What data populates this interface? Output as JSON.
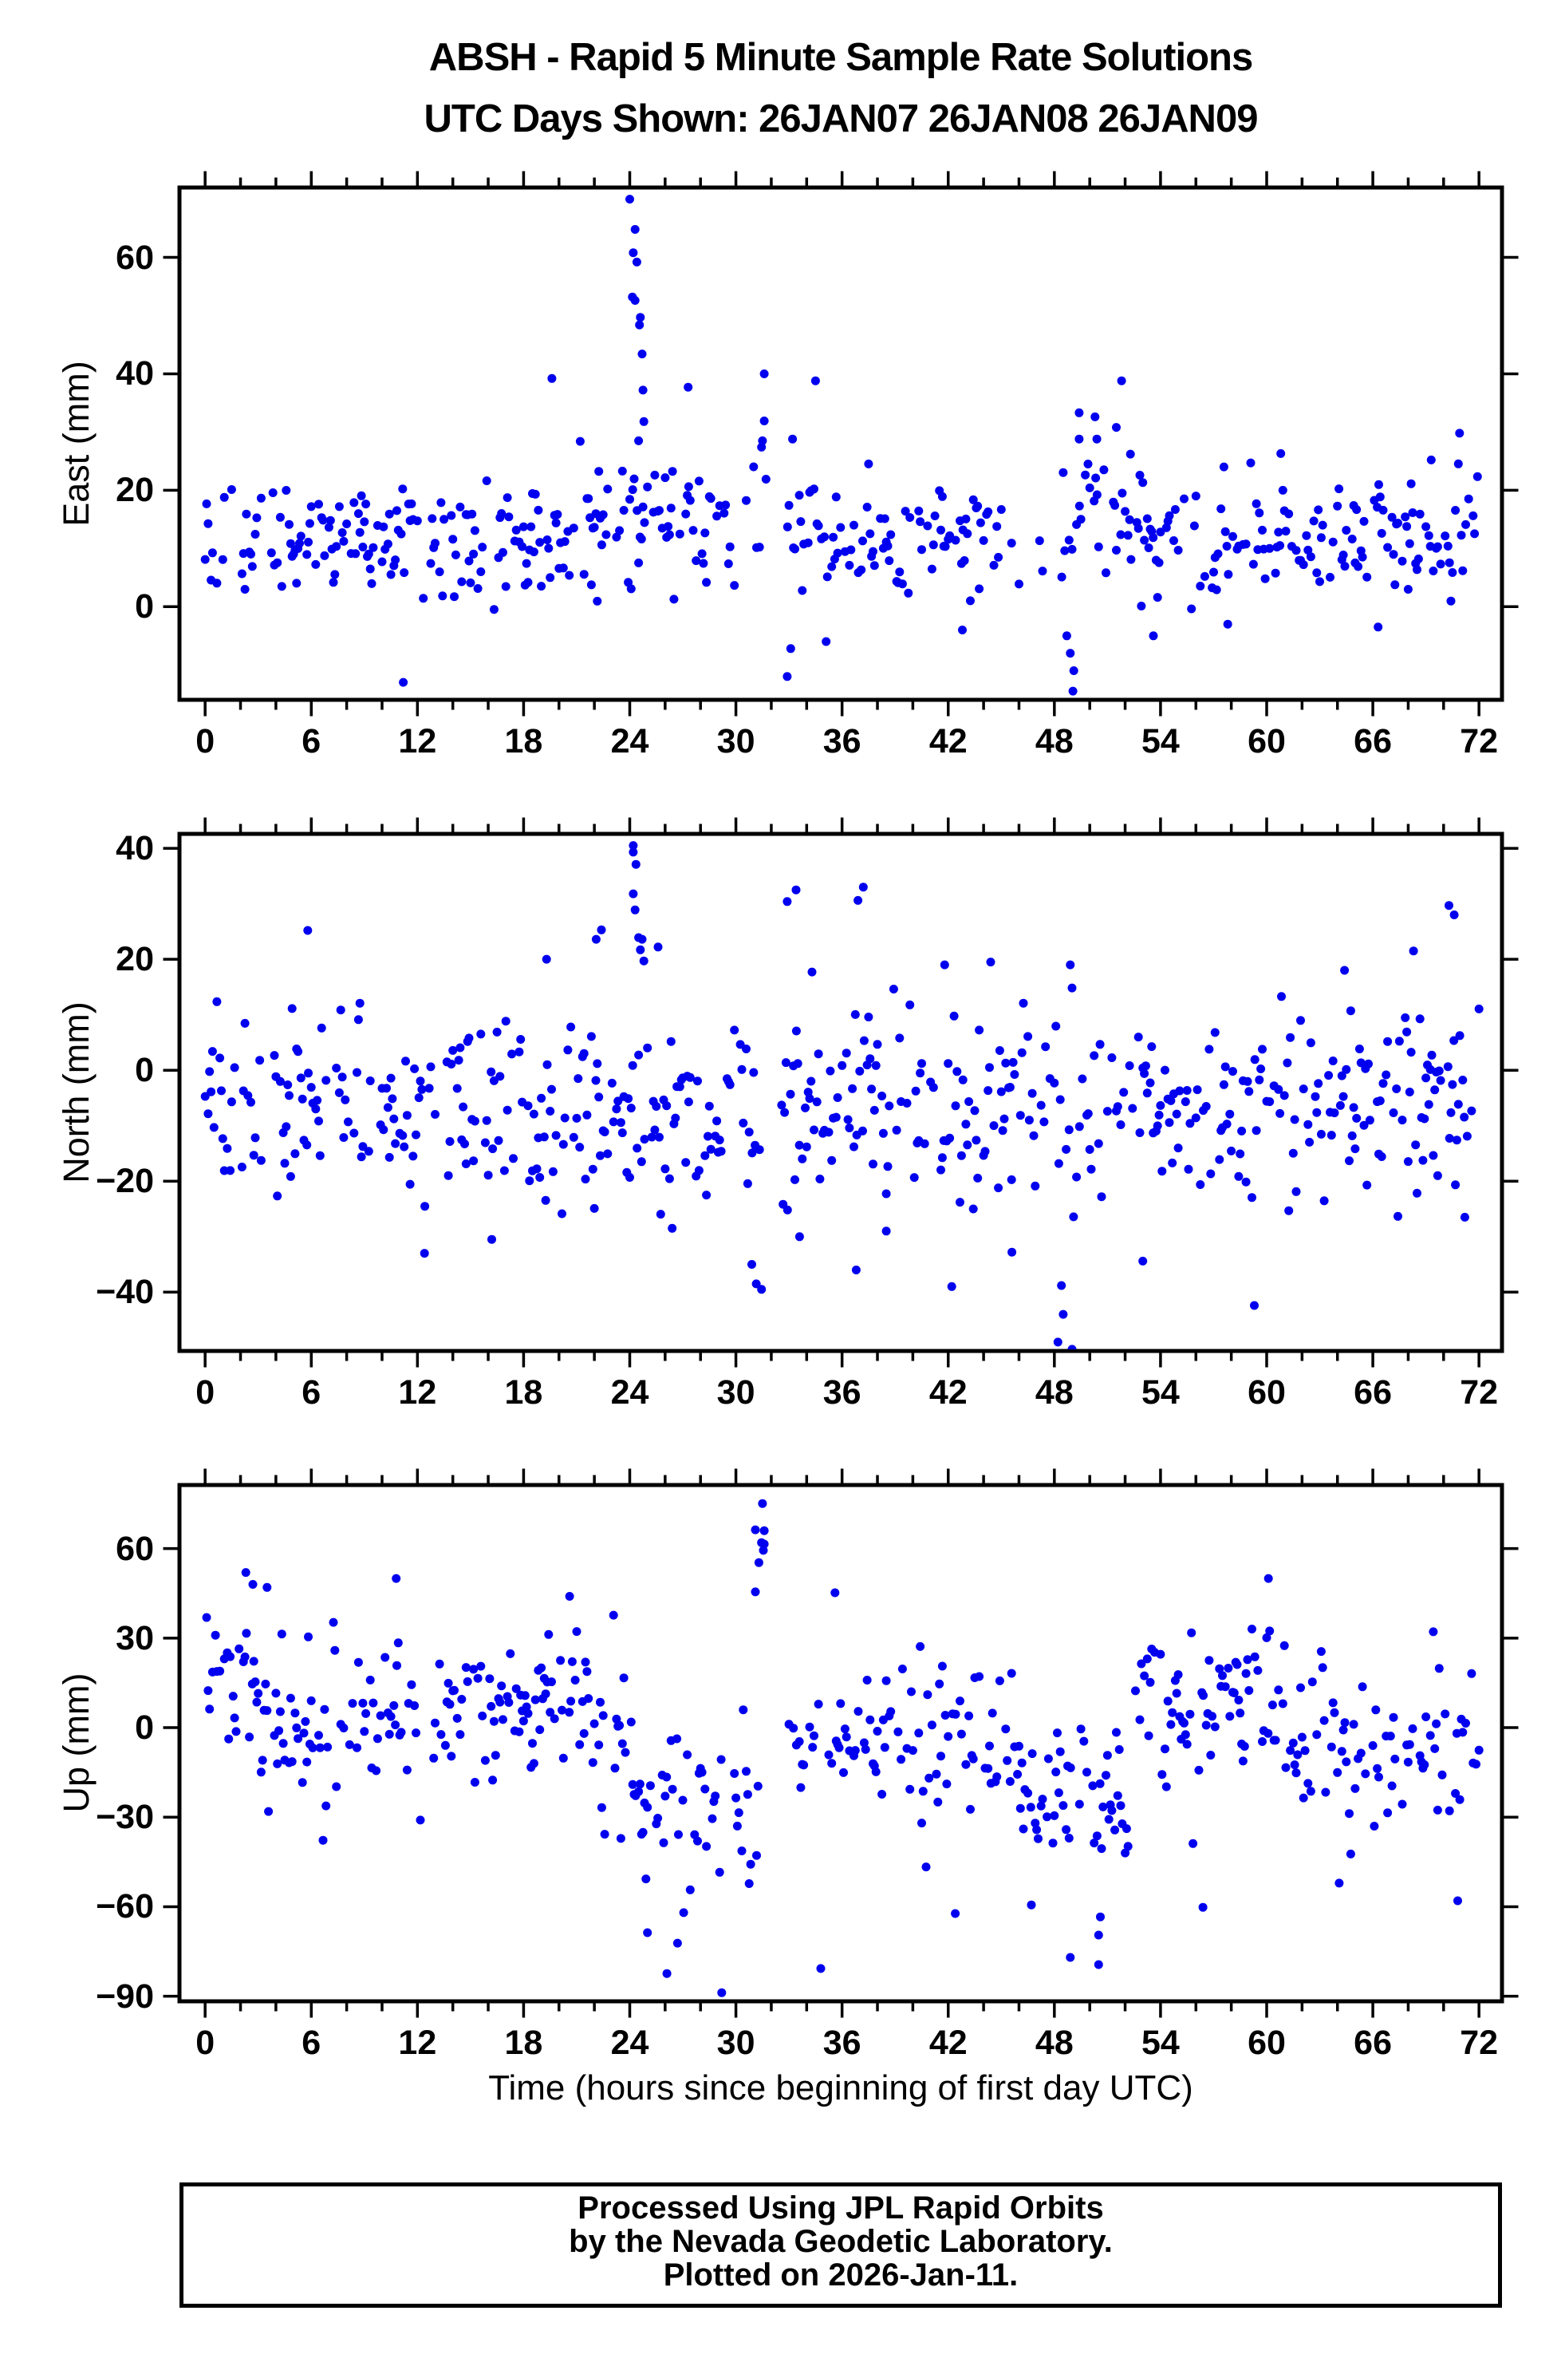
{
  "title": {
    "line1": "ABSH - Rapid 5 Minute Sample Rate Solutions",
    "line2": "UTC Days Shown:  26JAN07 26JAN08 26JAN09"
  },
  "footer": {
    "line1": "Processed Using JPL Rapid Orbits",
    "line2": "by the Nevada Geodetic Laboratory.",
    "line3": "Plotted on 2026-Jan-11."
  },
  "colors": {
    "dot": "#0000EE",
    "frame": "#000000",
    "text": "#000000",
    "background": "#ffffff"
  },
  "chart_data": {
    "type": "scatter",
    "title": "ABSH - Rapid 5 Minute Sample Rate Solutions",
    "subtitle": "UTC Days Shown:  26JAN07 26JAN08 26JAN09",
    "xlabel": "Time (hours since beginning of first day UTC)",
    "x_lim": [
      -1.45,
      73.3
    ],
    "x_ticks": [
      0,
      6,
      12,
      18,
      24,
      30,
      36,
      42,
      48,
      54,
      60,
      66,
      72
    ],
    "x_minor_step": 2,
    "sample_interval_hours": 0.0833333,
    "keep_fraction": 0.58,
    "data_gap_hours": [
      31.35,
      32.55
    ],
    "seed": 20260111,
    "marker": "filled-circle",
    "grid": false,
    "legend": "none",
    "panels": [
      {
        "name": "East",
        "ylabel": "East (mm)",
        "ylim": [
          -16,
          72
        ],
        "y_ticks": [
          0,
          20,
          40,
          60
        ],
        "base_clamp": [
          -1,
          25.5
        ],
        "segments": [
          {
            "x0": 0,
            "x1": 19,
            "mean": 11.5,
            "std": 4.8
          },
          {
            "x0": 19,
            "x1": 24,
            "mean": 12.5,
            "std": 5.5
          },
          {
            "x0": 24,
            "x1": 26,
            "mean": 15,
            "std": 6.5
          },
          {
            "x0": 26,
            "x1": 31.35,
            "mean": 12,
            "std": 6
          },
          {
            "x0": 32.55,
            "x1": 36,
            "mean": 12.5,
            "std": 6.5
          },
          {
            "x0": 36,
            "x1": 45,
            "mean": 11.5,
            "std": 5
          },
          {
            "x0": 45,
            "x1": 48.3,
            "mean": 8,
            "std": 4,
            "keep": 0.15
          },
          {
            "x0": 48.3,
            "x1": 53,
            "mean": 14.5,
            "std": 6.5
          },
          {
            "x0": 53,
            "x1": 64,
            "mean": 12,
            "std": 4.8
          },
          {
            "x0": 64,
            "x1": 72,
            "mean": 12,
            "std": 5.5
          }
        ],
        "outliers": [
          [
            24.0,
            70
          ],
          [
            24.3,
            64.8
          ],
          [
            24.2,
            60.8
          ],
          [
            24.4,
            59.2
          ],
          [
            24.15,
            53.2
          ],
          [
            24.3,
            52.6
          ],
          [
            24.6,
            49.7
          ],
          [
            24.55,
            48.4
          ],
          [
            24.7,
            43.4
          ],
          [
            24.75,
            37.2
          ],
          [
            24.8,
            31.8
          ],
          [
            24.5,
            28.5
          ],
          [
            21.2,
            28.4
          ],
          [
            19.6,
            39.2
          ],
          [
            27.3,
            37.7
          ],
          [
            31.6,
            40
          ],
          [
            31.6,
            31.9
          ],
          [
            31.5,
            28.5
          ],
          [
            31.45,
            27.4
          ],
          [
            31.7,
            21.9
          ],
          [
            34.5,
            38.8
          ],
          [
            33.2,
            28.8
          ],
          [
            51.8,
            38.8
          ],
          [
            49.4,
            33.3
          ],
          [
            50.3,
            32.6
          ],
          [
            51.5,
            30.8
          ],
          [
            49.4,
            28.8
          ],
          [
            50.4,
            28.8
          ],
          [
            49.9,
            24.5
          ],
          [
            50.8,
            23.5
          ],
          [
            52.3,
            26.2
          ],
          [
            60.8,
            26.3
          ],
          [
            59.1,
            24.7
          ],
          [
            70.9,
            29.8
          ],
          [
            69.3,
            25.2
          ],
          [
            11.2,
            -13
          ],
          [
            32.9,
            -12
          ],
          [
            33.1,
            -7.2
          ],
          [
            48.9,
            -8
          ],
          [
            49.1,
            -11
          ],
          [
            49.05,
            -14.5
          ],
          [
            48.7,
            -5
          ],
          [
            53.6,
            -5
          ],
          [
            57.8,
            -3
          ],
          [
            66.3,
            -3.5
          ],
          [
            35.1,
            -6
          ],
          [
            42.8,
            -4
          ]
        ]
      },
      {
        "name": "North",
        "ylabel": "North (mm)",
        "ylim": [
          -50.6,
          42.6
        ],
        "y_ticks": [
          -40,
          -20,
          0,
          20,
          40
        ],
        "base_clamp": [
          -26.5,
          16.5
        ],
        "segments": [
          {
            "x0": 0,
            "x1": 24,
            "mean": -7.5,
            "std": 8.5
          },
          {
            "x0": 24,
            "x1": 31.35,
            "mean": -9,
            "std": 9
          },
          {
            "x0": 32.55,
            "x1": 40,
            "mean": -6.5,
            "std": 9.5
          },
          {
            "x0": 40,
            "x1": 48,
            "mean": -8,
            "std": 9
          },
          {
            "x0": 48,
            "x1": 60,
            "mean": -7,
            "std": 8.5
          },
          {
            "x0": 60,
            "x1": 72,
            "mean": -5.5,
            "std": 9
          }
        ],
        "outliers": [
          [
            24.2,
            40.5
          ],
          [
            24.2,
            39.3
          ],
          [
            24.35,
            37.1
          ],
          [
            24.2,
            31.8
          ],
          [
            24.3,
            28.9
          ],
          [
            24.5,
            23.9
          ],
          [
            24.7,
            23.6
          ],
          [
            24.6,
            21.7
          ],
          [
            24.8,
            19.7
          ],
          [
            25.6,
            22.2
          ],
          [
            22.4,
            25.3
          ],
          [
            22.1,
            23.6
          ],
          [
            5.8,
            25.2
          ],
          [
            32.9,
            30.4
          ],
          [
            33.4,
            32.5
          ],
          [
            37.2,
            33
          ],
          [
            36.9,
            30.6
          ],
          [
            34.3,
            17.7
          ],
          [
            19.3,
            20
          ],
          [
            44.4,
            19.5
          ],
          [
            41.8,
            19
          ],
          [
            70.3,
            29.7
          ],
          [
            70.6,
            28
          ],
          [
            68.3,
            21.5
          ],
          [
            64.4,
            18
          ],
          [
            48.9,
            19
          ],
          [
            12.4,
            -33
          ],
          [
            16.2,
            -30.5
          ],
          [
            31.15,
            -38.5
          ],
          [
            31.45,
            -39.5
          ],
          [
            30.9,
            -35
          ],
          [
            33.6,
            -30
          ],
          [
            36.8,
            -36
          ],
          [
            42.2,
            -39
          ],
          [
            45.6,
            -32.8
          ],
          [
            48.4,
            -38.8
          ],
          [
            48.5,
            -44
          ],
          [
            48.2,
            -49
          ],
          [
            49.0,
            -50.3
          ],
          [
            53.0,
            -34.4
          ],
          [
            59.3,
            -42.4
          ],
          [
            71.2,
            -26.5
          ],
          [
            26.4,
            -28.5
          ],
          [
            38.5,
            -29
          ]
        ]
      },
      {
        "name": "Up",
        "ylabel": "Up (mm)",
        "ylim": [
          -91.7,
          81.3
        ],
        "y_ticks": [
          -90,
          -60,
          -30,
          0,
          30,
          60
        ],
        "base_clamp": [
          -55,
          40
        ],
        "segments": [
          {
            "x0": 0,
            "x1": 3,
            "mean": 14,
            "std": 13
          },
          {
            "x0": 3,
            "x1": 7,
            "mean": 2,
            "std": 17
          },
          {
            "x0": 7,
            "x1": 12,
            "mean": 6,
            "std": 15
          },
          {
            "x0": 12,
            "x1": 16,
            "mean": 2,
            "std": 13
          },
          {
            "x0": 16,
            "x1": 22,
            "mean": 6,
            "std": 12
          },
          {
            "x0": 22,
            "x1": 24,
            "mean": -4,
            "std": 14
          },
          {
            "x0": 24,
            "x1": 27,
            "mean": -22,
            "std": 17
          },
          {
            "x0": 27,
            "x1": 31.35,
            "mean": -28,
            "std": 18
          },
          {
            "x0": 32.55,
            "x1": 35,
            "mean": -8,
            "std": 18
          },
          {
            "x0": 35,
            "x1": 40,
            "mean": -4,
            "std": 13
          },
          {
            "x0": 40,
            "x1": 46,
            "mean": -4,
            "std": 14
          },
          {
            "x0": 46,
            "x1": 52.5,
            "mean": -22,
            "std": 15
          },
          {
            "x0": 52.5,
            "x1": 57,
            "mean": 2,
            "std": 14
          },
          {
            "x0": 57,
            "x1": 61,
            "mean": 12,
            "std": 12
          },
          {
            "x0": 61,
            "x1": 67,
            "mean": -4,
            "std": 12
          },
          {
            "x0": 67,
            "x1": 72,
            "mean": -4,
            "std": 13
          }
        ],
        "outliers": [
          [
            31.5,
            75.1
          ],
          [
            31.1,
            66.3
          ],
          [
            31.6,
            66
          ],
          [
            31.45,
            62
          ],
          [
            31.6,
            61.5
          ],
          [
            31.55,
            59.4
          ],
          [
            31.3,
            55.3
          ],
          [
            31.1,
            45.5
          ],
          [
            35.6,
            45.2
          ],
          [
            2.3,
            52
          ],
          [
            2.7,
            48
          ],
          [
            3.5,
            47
          ],
          [
            10.8,
            50
          ],
          [
            20.6,
            44
          ],
          [
            60.1,
            50
          ],
          [
            27.05,
            -62
          ],
          [
            25,
            -68.7
          ],
          [
            26.7,
            -72.2
          ],
          [
            26.1,
            -82.4
          ],
          [
            29.2,
            -88.8
          ],
          [
            34.8,
            -80.7
          ],
          [
            42.4,
            -62.3
          ],
          [
            46.7,
            -59.4
          ],
          [
            50.6,
            -63.4
          ],
          [
            50.5,
            -69.5
          ],
          [
            48.9,
            -77
          ],
          [
            50.5,
            -79.4
          ],
          [
            56.4,
            -60.2
          ],
          [
            64.1,
            -52.1
          ],
          [
            70.8,
            -58
          ]
        ]
      }
    ]
  }
}
